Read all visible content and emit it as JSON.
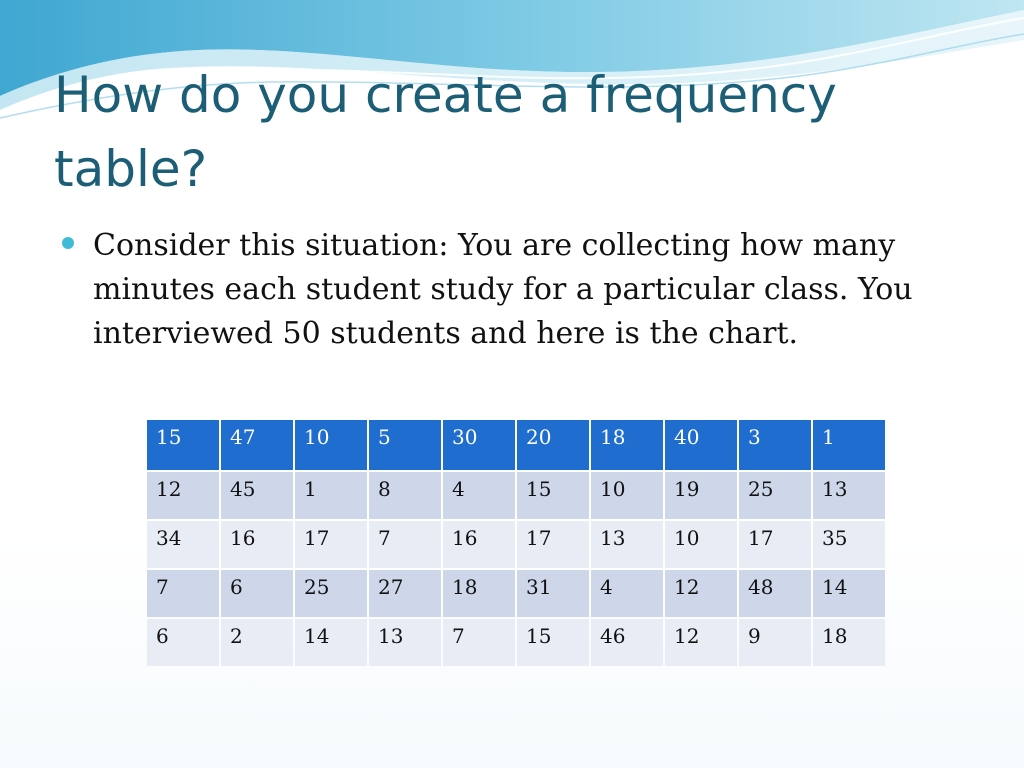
{
  "slide": {
    "title": "How do you create a frequency table?",
    "bullet": "Consider this situation: You are collecting how many minutes each student study for a particular class.  You interviewed 50 students and here is the chart.",
    "accent_color": "#1b5e75",
    "bullet_color": "#3fbbd8",
    "header_row_color": "#1f6dcf"
  },
  "table": {
    "rows": [
      [
        "15",
        "47",
        "10",
        "5",
        "30",
        "20",
        "18",
        "40",
        "3",
        "1"
      ],
      [
        "12",
        "45",
        "1",
        "8",
        "4",
        "15",
        "10",
        "19",
        "25",
        "13"
      ],
      [
        "34",
        "16",
        "17",
        "7",
        "16",
        "17",
        "13",
        "10",
        "17",
        "35"
      ],
      [
        "7",
        "6",
        "25",
        "27",
        "18",
        "31",
        "4",
        "12",
        "48",
        "14"
      ],
      [
        "6",
        "2",
        "14",
        "13",
        "7",
        "15",
        "46",
        "12",
        "9",
        "18"
      ]
    ]
  }
}
